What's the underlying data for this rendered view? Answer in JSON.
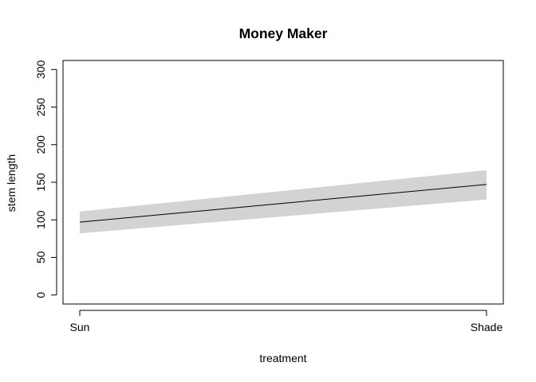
{
  "chart_data": {
    "type": "line",
    "title": "Money Maker",
    "xlabel": "treatment",
    "ylabel": "stem length",
    "categories": [
      "Sun",
      "Shade"
    ],
    "series": [
      {
        "values": [
          97,
          147
        ],
        "lower": [
          82,
          127
        ],
        "upper": [
          111,
          166
        ]
      }
    ],
    "ylim": [
      -12,
      312
    ],
    "yticks": [
      0,
      50,
      100,
      150,
      200,
      250,
      300
    ],
    "grid": false,
    "colors": {
      "line": "#000000",
      "band": "#d3d3d3",
      "frame": "#000000"
    }
  }
}
